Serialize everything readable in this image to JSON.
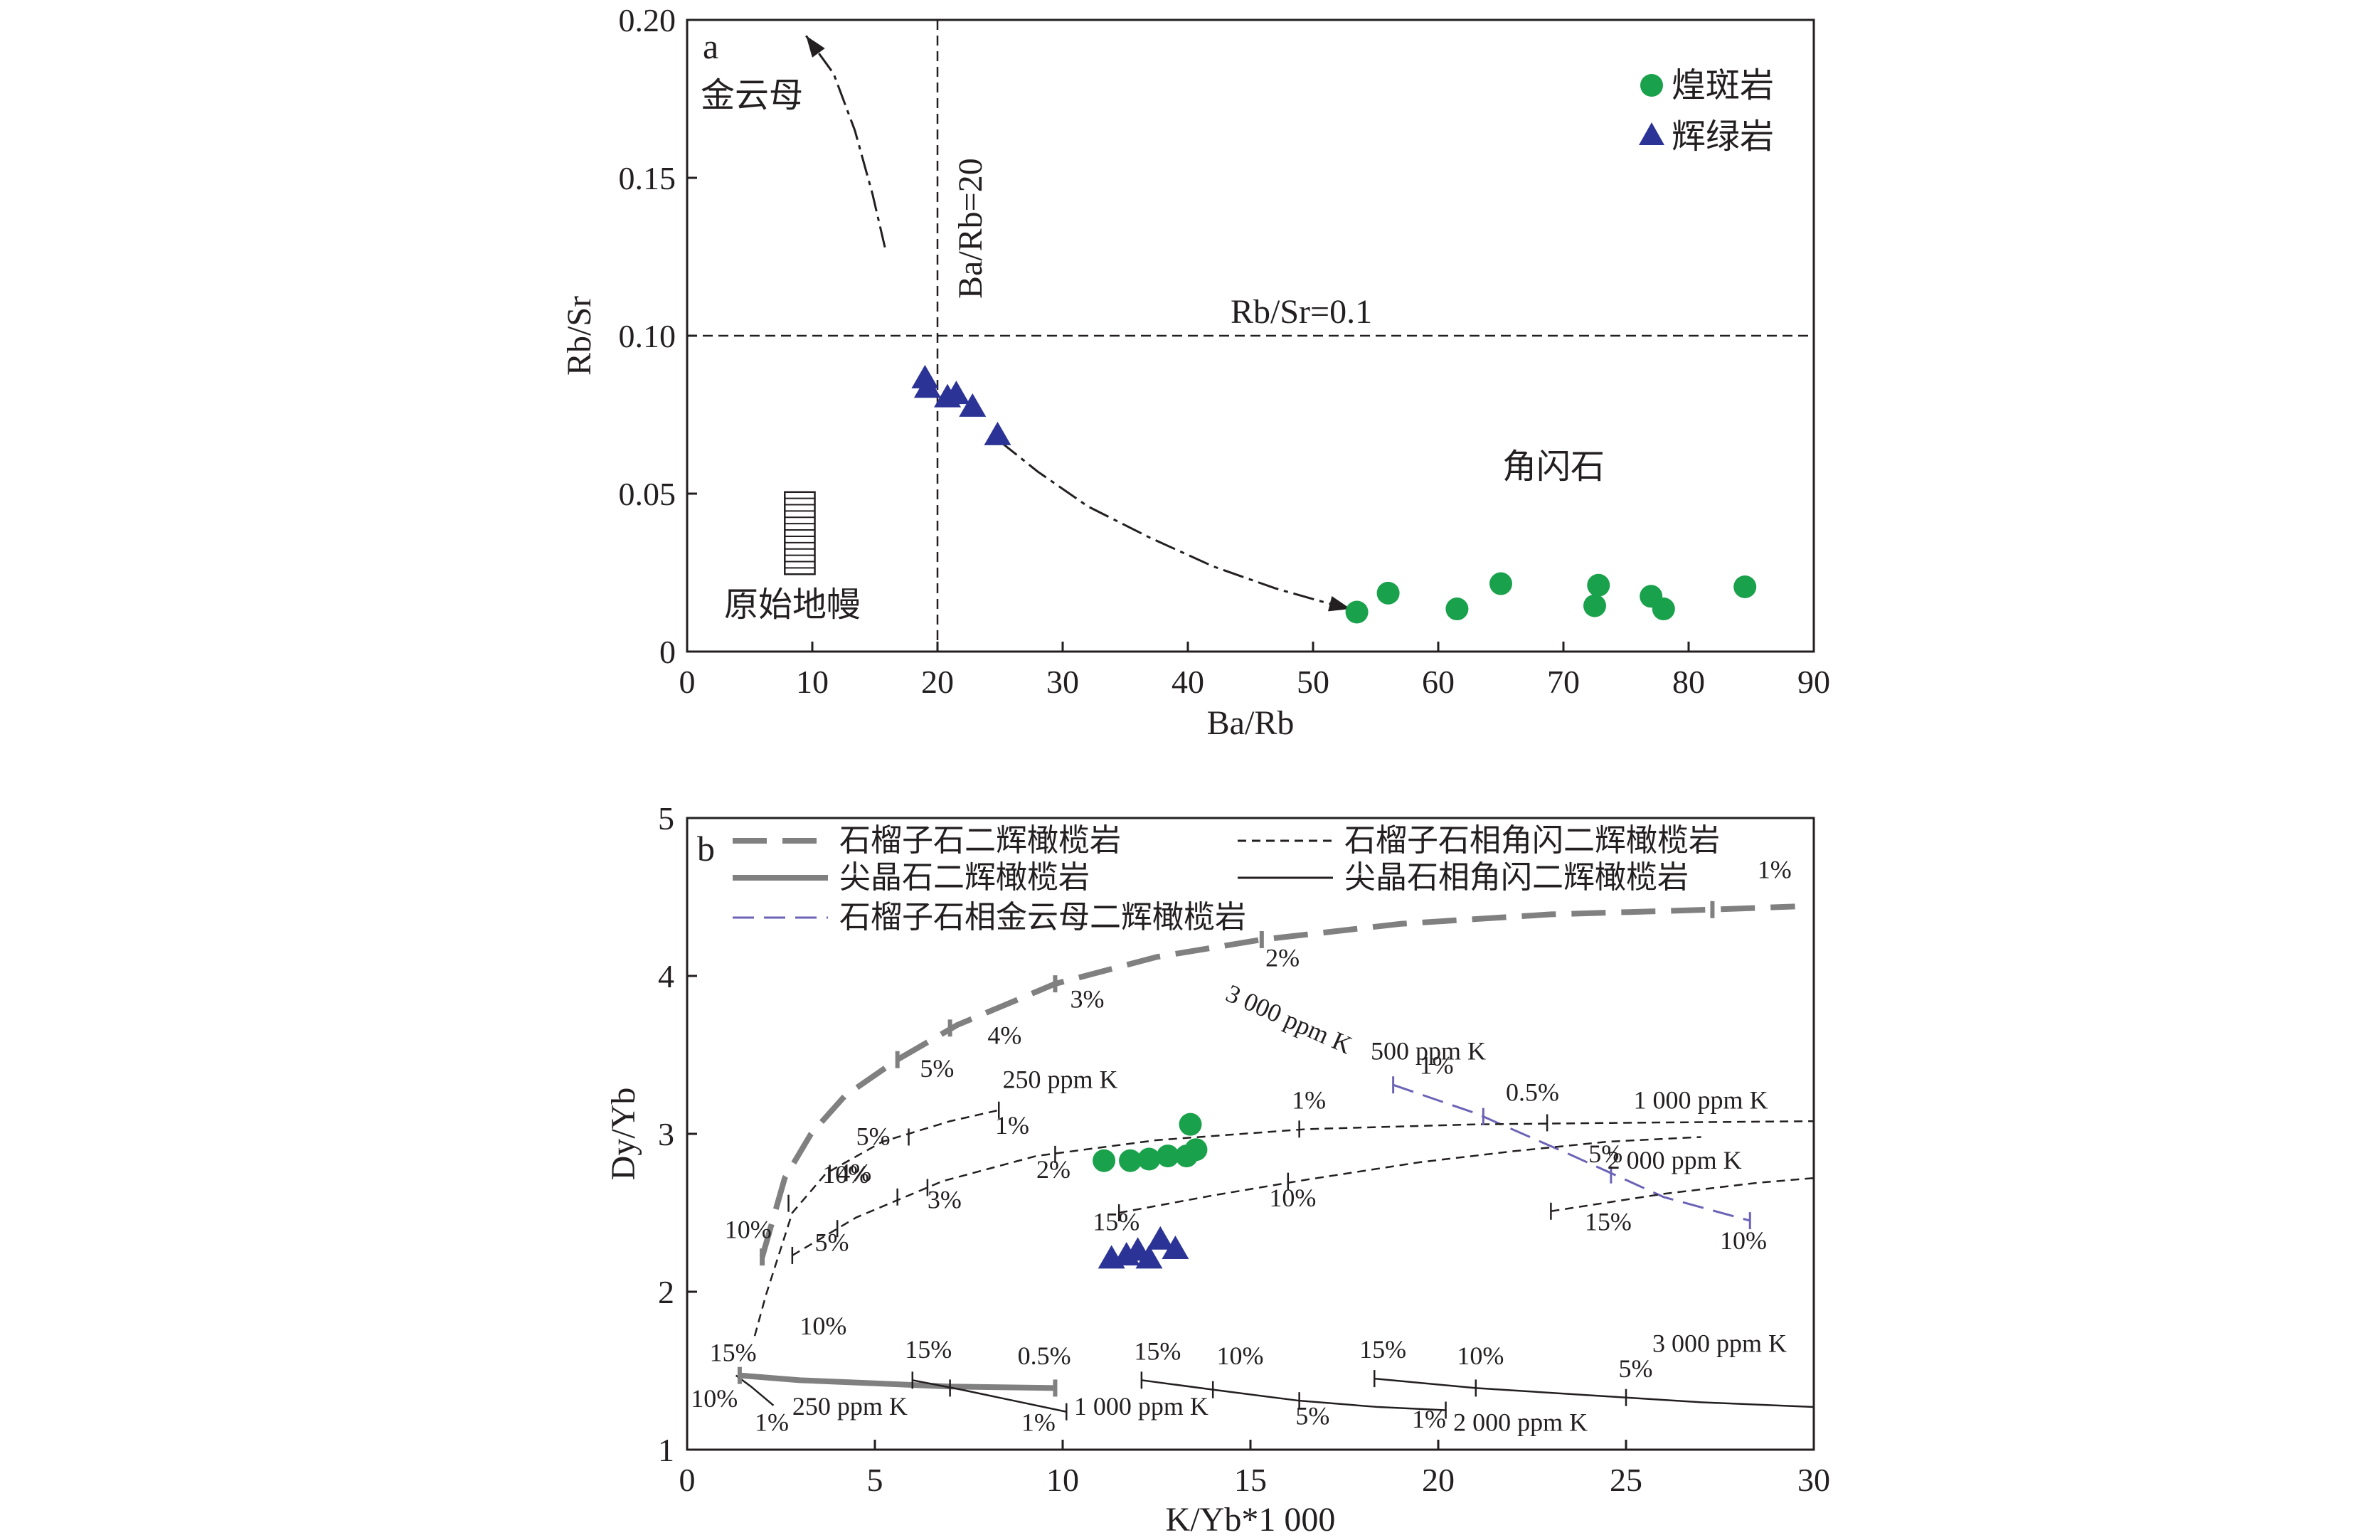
{
  "chart_data": [
    {
      "panel": "a",
      "type": "scatter",
      "title": "",
      "xlabel": "Ba/Rb",
      "ylabel": "Rb/Sr",
      "xlim": [
        0,
        90
      ],
      "ylim": [
        0,
        0.2
      ],
      "xticks": [
        "0",
        "10",
        "20",
        "30",
        "40",
        "50",
        "60",
        "70",
        "80",
        "90"
      ],
      "yticks": [
        "0",
        "0.05",
        "0.10",
        "0.15",
        "0.20"
      ],
      "legend_position": "top-right",
      "series": [
        {
          "name": "煌斑岩",
          "marker": "circle",
          "color": "#1aa14b",
          "points": [
            [
              53.5,
              0.0125
            ],
            [
              56,
              0.0185
            ],
            [
              61.5,
              0.0135
            ],
            [
              65,
              0.0215
            ],
            [
              72.5,
              0.0145
            ],
            [
              72.8,
              0.021
            ],
            [
              77,
              0.0175
            ],
            [
              78,
              0.0135
            ],
            [
              84.5,
              0.0205
            ]
          ]
        },
        {
          "name": "辉绿岩",
          "marker": "triangle",
          "color": "#2b3496",
          "points": [
            [
              19,
              0.0865
            ],
            [
              19.2,
              0.0835
            ],
            [
              20.8,
              0.0805
            ],
            [
              21.5,
              0.0815
            ],
            [
              22.8,
              0.0775
            ],
            [
              24.8,
              0.0685
            ]
          ]
        }
      ],
      "reference_lines": [
        {
          "label": "Ba/Rb=20",
          "axis": "x",
          "value": 20
        },
        {
          "label": "Rb/Sr=0.1",
          "axis": "y",
          "value": 0.1
        }
      ],
      "region_labels": [
        "金云母",
        "角闪石",
        "原始地幔"
      ],
      "curves": {
        "phlogopite_arrow": [
          [
            15.8,
            0.128
          ],
          [
            14.8,
            0.145
          ],
          [
            13.4,
            0.165
          ],
          [
            11.7,
            0.183
          ],
          [
            9.5,
            0.195
          ]
        ],
        "amphibole_arrow": [
          [
            25,
            0.0665
          ],
          [
            28,
            0.057
          ],
          [
            32,
            0.046
          ],
          [
            37,
            0.036
          ],
          [
            42,
            0.027
          ],
          [
            47,
            0.02
          ],
          [
            51,
            0.0155
          ],
          [
            53,
            0.0135
          ]
        ]
      },
      "primitive_mantle_box": {
        "x": [
          7.8,
          10.2
        ],
        "y": [
          0.0245,
          0.0505
        ],
        "line_count": 12
      }
    },
    {
      "panel": "b",
      "type": "line",
      "title": "",
      "xlabel": "K/Yb*1 000",
      "ylabel": "Dy/Yb",
      "xlim": [
        0,
        30
      ],
      "ylim": [
        1,
        5
      ],
      "xticks": [
        "0",
        "5",
        "10",
        "15",
        "20",
        "25",
        "30"
      ],
      "yticks": [
        "1",
        "2",
        "3",
        "4",
        "5"
      ],
      "legend_position": "top",
      "legend": [
        {
          "name": "石榴子石二辉橄榄岩",
          "style": "grey-long-dash"
        },
        {
          "name": "尖晶石二辉橄榄岩",
          "style": "grey-solid"
        },
        {
          "name": "石榴子石相金云母二辉橄榄岩",
          "style": "purple-dash"
        },
        {
          "name": "石榴子石相角闪二辉橄榄岩",
          "style": "black-short-dash"
        },
        {
          "name": "尖晶石相角闪二辉橄榄岩",
          "style": "black-solid"
        }
      ],
      "scatter_series": [
        {
          "name": "煌斑岩",
          "marker": "circle",
          "color": "#1aa14b",
          "points": [
            [
              11.1,
              2.83
            ],
            [
              11.8,
              2.83
            ],
            [
              12.3,
              2.84
            ],
            [
              12.8,
              2.86
            ],
            [
              13.3,
              2.86
            ],
            [
              13.4,
              3.06
            ],
            [
              13.55,
              2.9
            ]
          ]
        },
        {
          "name": "辉绿岩",
          "marker": "triangle",
          "color": "#2b3496",
          "points": [
            [
              11.3,
              2.21
            ],
            [
              11.7,
              2.23
            ],
            [
              12.0,
              2.26
            ],
            [
              12.3,
              2.21
            ],
            [
              12.6,
              2.33
            ],
            [
              13.0,
              2.27
            ]
          ]
        }
      ],
      "model_curves": [
        {
          "name": "石榴子石二辉橄榄岩",
          "points": [
            [
              2.0,
              2.22
            ],
            [
              2.6,
              2.72
            ],
            [
              3.3,
              3.0
            ],
            [
              4.2,
              3.24
            ],
            [
              5.6,
              3.47
            ],
            [
              7.2,
              3.69
            ],
            [
              9.8,
              3.95
            ],
            [
              12.5,
              4.12
            ],
            [
              15.3,
              4.23
            ],
            [
              19,
              4.33
            ],
            [
              23,
              4.39
            ],
            [
              27.3,
              4.42
            ],
            [
              29.5,
              4.44
            ]
          ]
        },
        {
          "name": "尖晶石二辉橄榄岩",
          "points": [
            [
              1.4,
              1.47
            ],
            [
              3,
              1.44
            ],
            [
              5,
              1.42
            ],
            [
              7,
              1.4
            ],
            [
              9.8,
              1.39
            ]
          ]
        },
        {
          "name": "石榴子石相金云母二辉橄榄岩",
          "points": [
            [
              18.8,
              3.31
            ],
            [
              21,
              3.13
            ],
            [
              23.5,
              2.87
            ],
            [
              26,
              2.6
            ],
            [
              28.3,
              2.45
            ]
          ]
        },
        {
          "name": "石榴子石相角闪二辉橄榄岩 250 ppm K",
          "points": [
            [
              1.8,
              1.72
            ],
            [
              2.1,
              1.98
            ],
            [
              2.8,
              2.5
            ],
            [
              3.7,
              2.75
            ],
            [
              5.2,
              2.95
            ],
            [
              7,
              3.08
            ],
            [
              8.3,
              3.15
            ]
          ]
        },
        {
          "name": "石榴子石相角闪二辉橄榄岩 1 000 ppm K",
          "points": [
            [
              2.8,
              2.23
            ],
            [
              4.5,
              2.47
            ],
            [
              6.8,
              2.7
            ],
            [
              9.3,
              2.86
            ],
            [
              12.5,
              2.96
            ],
            [
              16.5,
              3.03
            ],
            [
              21,
              3.06
            ],
            [
              25,
              3.07
            ],
            [
              30,
              3.08
            ]
          ]
        },
        {
          "name": "石榴子石相角闪二辉橄榄岩 2 000 ppm K",
          "points": [
            [
              11.5,
              2.5
            ],
            [
              14,
              2.61
            ],
            [
              16.5,
              2.71
            ],
            [
              19.5,
              2.82
            ],
            [
              22,
              2.89
            ],
            [
              24.5,
              2.95
            ],
            [
              27,
              2.98
            ]
          ]
        },
        {
          "name": "石榴子石相角闪二辉橄榄岩 3 000 ppm K",
          "points": [
            [
              23,
              2.51
            ],
            [
              26,
              2.62
            ],
            [
              28.5,
              2.69
            ],
            [
              30,
              2.72
            ]
          ]
        },
        {
          "name": "尖晶石相角闪二辉橄榄岩 250 ppm K",
          "points": [
            [
              1.3,
              1.47
            ],
            [
              1.7,
              1.4
            ],
            [
              2.3,
              1.28
            ]
          ]
        },
        {
          "name": "尖晶石相角闪二辉橄榄岩 1 000 ppm K",
          "points": [
            [
              6,
              1.44
            ],
            [
              7.3,
              1.38
            ],
            [
              8.7,
              1.31
            ],
            [
              10.1,
              1.24
            ]
          ]
        },
        {
          "name": "尖晶石相角闪二辉橄榄岩 2 000 ppm K",
          "points": [
            [
              12.1,
              1.44
            ],
            [
              14,
              1.38
            ],
            [
              16.3,
              1.31
            ],
            [
              18.4,
              1.27
            ],
            [
              20.2,
              1.25
            ]
          ]
        },
        {
          "name": "尖晶石相角闪二辉橄榄岩 3 000 ppm K",
          "points": [
            [
              18.3,
              1.45
            ],
            [
              21,
              1.39
            ],
            [
              25,
              1.33
            ],
            [
              27,
              1.3
            ],
            [
              30,
              1.27
            ]
          ]
        }
      ],
      "annotations": [
        "1%",
        "2%",
        "3%",
        "4%",
        "5%",
        "10%",
        "15%",
        "0.5%",
        "250 ppm K",
        "500 ppm K",
        "1 000 ppm K",
        "2 000 ppm K",
        "3 000 ppm K"
      ]
    }
  ]
}
